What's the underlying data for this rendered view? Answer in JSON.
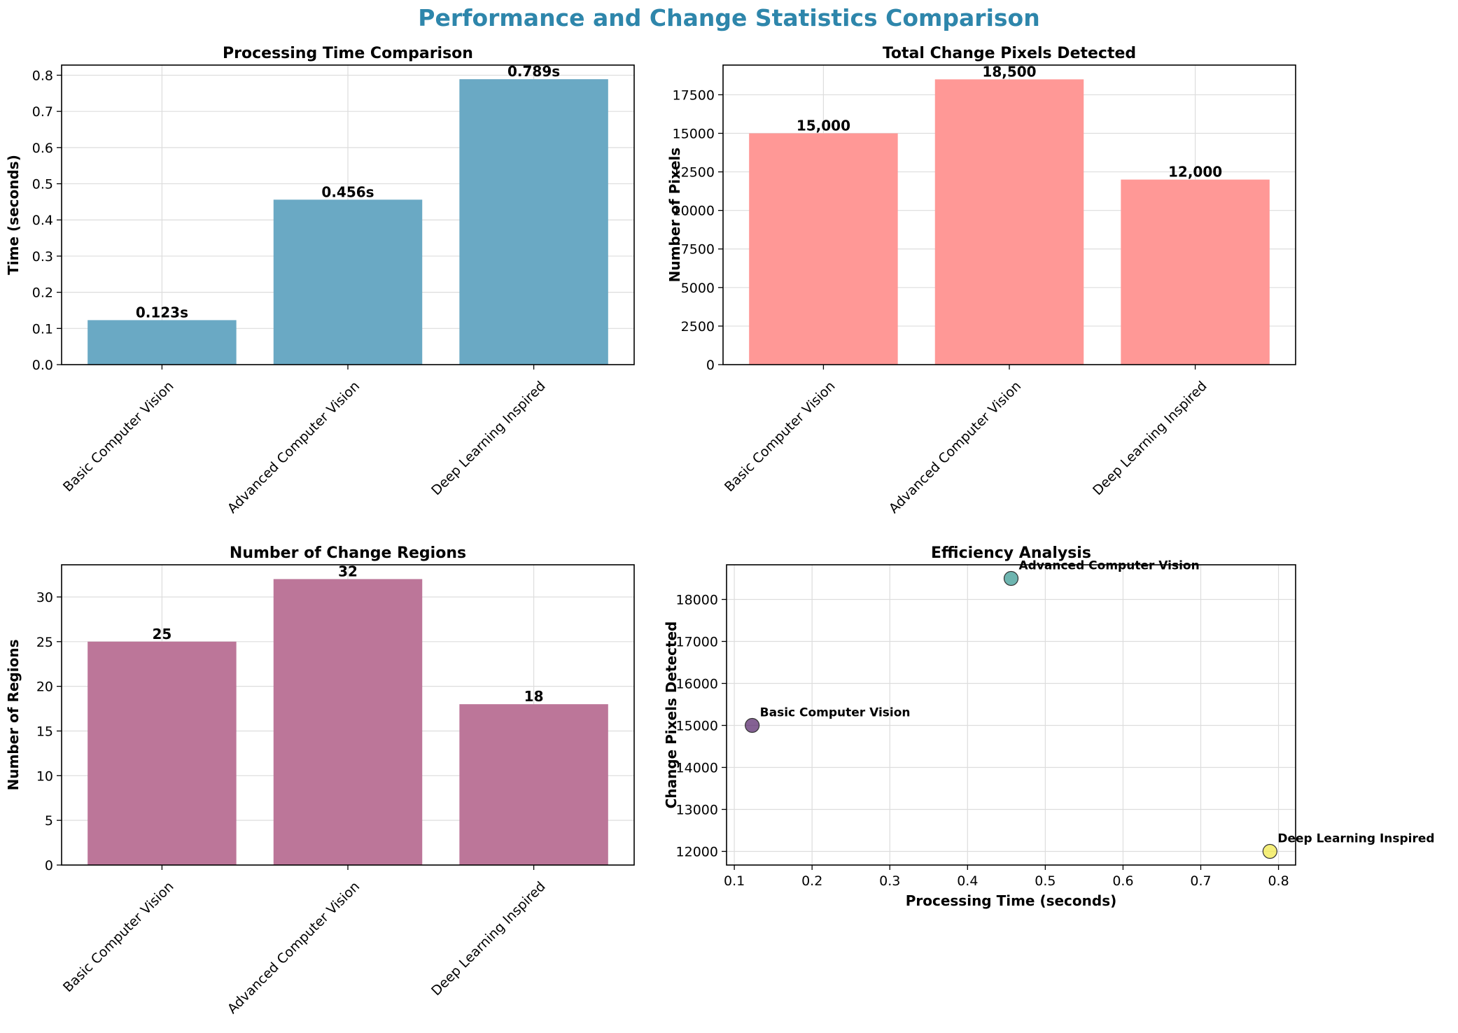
{
  "figure": {
    "title": "Performance and Change Statistics Comparison",
    "title_color": "#2e86ab"
  },
  "chart_data": [
    {
      "type": "bar",
      "title": "Processing Time Comparison",
      "xlabel": "",
      "ylabel": "Time (seconds)",
      "categories": [
        "Basic Computer Vision",
        "Advanced Computer Vision",
        "Deep Learning Inspired"
      ],
      "values": [
        0.123,
        0.456,
        0.789
      ],
      "data_labels": [
        "0.123s",
        "0.456s",
        "0.789s"
      ],
      "ylim": [
        0,
        0.828
      ],
      "yticks": [
        0.0,
        0.1,
        0.2,
        0.3,
        0.4,
        0.5,
        0.6,
        0.7,
        0.8
      ],
      "ytick_labels": [
        "0.0",
        "0.1",
        "0.2",
        "0.3",
        "0.4",
        "0.5",
        "0.6",
        "0.7",
        "0.8"
      ],
      "color": "#6aa9c4",
      "grid": true
    },
    {
      "type": "bar",
      "title": "Total Change Pixels Detected",
      "xlabel": "",
      "ylabel": "Number of Pixels",
      "categories": [
        "Basic Computer Vision",
        "Advanced Computer Vision",
        "Deep Learning Inspired"
      ],
      "values": [
        15000,
        18500,
        12000
      ],
      "data_labels": [
        "15,000",
        "18,500",
        "12,000"
      ],
      "ylim": [
        0,
        19425
      ],
      "yticks": [
        0,
        2500,
        5000,
        7500,
        10000,
        12500,
        15000,
        17500
      ],
      "ytick_labels": [
        "0",
        "2500",
        "5000",
        "7500",
        "10000",
        "12500",
        "15000",
        "17500"
      ],
      "color": "#ff9896",
      "grid": true
    },
    {
      "type": "bar",
      "title": "Number of Change Regions",
      "xlabel": "",
      "ylabel": "Number of Regions",
      "categories": [
        "Basic Computer Vision",
        "Advanced Computer Vision",
        "Deep Learning Inspired"
      ],
      "values": [
        25,
        32,
        18
      ],
      "data_labels": [
        "25",
        "32",
        "18"
      ],
      "ylim": [
        0,
        33.6
      ],
      "yticks": [
        0,
        5,
        10,
        15,
        20,
        25,
        30
      ],
      "ytick_labels": [
        "0",
        "5",
        "10",
        "15",
        "20",
        "25",
        "30"
      ],
      "color": "#bc7699",
      "grid": true
    },
    {
      "type": "scatter",
      "title": "Efficiency Analysis",
      "xlabel": "Processing Time (seconds)",
      "ylabel": "Change Pixels Detected",
      "points": [
        {
          "label": "Basic Computer Vision",
          "x": 0.123,
          "y": 15000,
          "color": "#5b2c6f"
        },
        {
          "label": "Advanced Computer Vision",
          "x": 0.456,
          "y": 18500,
          "color": "#3d9c96"
        },
        {
          "label": "Deep Learning Inspired",
          "x": 0.789,
          "y": 12000,
          "color": "#f2e94e"
        }
      ],
      "xlim": [
        0.09,
        0.822
      ],
      "ylim": [
        11675,
        18825
      ],
      "xticks": [
        0.1,
        0.2,
        0.3,
        0.4,
        0.5,
        0.6,
        0.7,
        0.8
      ],
      "xtick_labels": [
        "0.1",
        "0.2",
        "0.3",
        "0.4",
        "0.5",
        "0.6",
        "0.7",
        "0.8"
      ],
      "yticks": [
        12000,
        13000,
        14000,
        15000,
        16000,
        17000,
        18000
      ],
      "ytick_labels": [
        "12000",
        "13000",
        "14000",
        "15000",
        "16000",
        "17000",
        "18000"
      ],
      "grid": true
    }
  ]
}
